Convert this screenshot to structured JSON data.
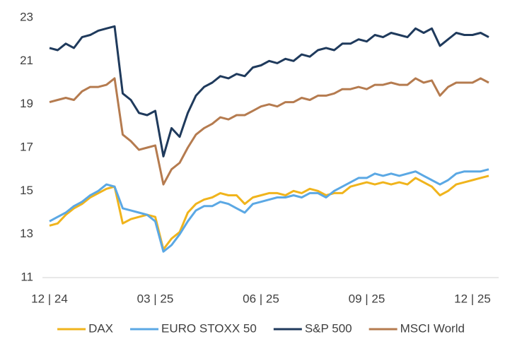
{
  "chart_data": {
    "type": "line",
    "categories": [
      "12 | 24",
      null,
      null,
      null,
      null,
      null,
      null,
      null,
      null,
      null,
      null,
      null,
      null,
      "03 | 25",
      null,
      null,
      null,
      null,
      null,
      null,
      null,
      null,
      null,
      null,
      null,
      null,
      "06 | 25",
      null,
      null,
      null,
      null,
      null,
      null,
      null,
      null,
      null,
      null,
      null,
      null,
      "09 | 25",
      null,
      null,
      null,
      null,
      null,
      null,
      null,
      null,
      null,
      null,
      null,
      null,
      "12 | 25",
      null,
      null
    ],
    "ylim": [
      11,
      23
    ],
    "yticks": [
      11,
      13,
      15,
      17,
      19,
      21,
      23
    ],
    "grid": false,
    "legend": "bottom",
    "series": [
      {
        "name": "DAX",
        "color": "#f0b41c",
        "values": [
          13.4,
          13.5,
          13.9,
          14.2,
          14.4,
          14.7,
          14.9,
          15.1,
          15.2,
          13.5,
          13.7,
          13.8,
          13.9,
          13.8,
          12.3,
          12.8,
          13.1,
          14.0,
          14.4,
          14.6,
          14.7,
          14.9,
          14.8,
          14.8,
          14.4,
          14.7,
          14.8,
          14.9,
          14.9,
          14.8,
          15.0,
          14.9,
          15.1,
          15.0,
          14.8,
          14.9,
          14.9,
          15.2,
          15.3,
          15.4,
          15.3,
          15.4,
          15.3,
          15.4,
          15.3,
          15.6,
          15.4,
          15.2,
          14.8,
          15.0,
          15.3,
          15.4,
          15.5,
          15.6,
          15.7
        ]
      },
      {
        "name": "EURO STOXX 50",
        "color": "#5ba8e4",
        "values": [
          13.6,
          13.8,
          14.0,
          14.3,
          14.5,
          14.8,
          15.0,
          15.3,
          15.2,
          14.2,
          14.1,
          14.0,
          13.9,
          13.6,
          12.2,
          12.5,
          13.0,
          13.6,
          14.1,
          14.3,
          14.3,
          14.5,
          14.4,
          14.2,
          14.0,
          14.4,
          14.5,
          14.6,
          14.7,
          14.7,
          14.8,
          14.7,
          14.9,
          14.9,
          14.7,
          15.0,
          15.2,
          15.4,
          15.6,
          15.6,
          15.8,
          15.7,
          15.8,
          15.7,
          15.8,
          15.9,
          15.7,
          15.5,
          15.3,
          15.5,
          15.8,
          15.9,
          15.9,
          15.9,
          16.0
        ]
      },
      {
        "name": "S&P 500",
        "color": "#1f3a5c",
        "values": [
          21.6,
          21.5,
          21.8,
          21.6,
          22.1,
          22.2,
          22.4,
          22.5,
          22.6,
          19.5,
          19.2,
          18.6,
          18.5,
          18.7,
          16.6,
          17.9,
          17.5,
          18.6,
          19.4,
          19.8,
          20.0,
          20.3,
          20.2,
          20.4,
          20.3,
          20.7,
          20.8,
          21.0,
          20.9,
          21.1,
          21.0,
          21.3,
          21.2,
          21.5,
          21.6,
          21.5,
          21.8,
          21.8,
          22.0,
          21.9,
          22.2,
          22.1,
          22.3,
          22.2,
          22.1,
          22.5,
          22.3,
          22.5,
          21.7,
          22.0,
          22.3,
          22.2,
          22.2,
          22.3,
          22.1
        ]
      },
      {
        "name": "MSCI World",
        "color": "#b57b4f",
        "values": [
          19.1,
          19.2,
          19.3,
          19.2,
          19.6,
          19.8,
          19.8,
          19.9,
          20.2,
          17.6,
          17.3,
          16.9,
          17.0,
          17.1,
          15.3,
          16.0,
          16.3,
          17.0,
          17.6,
          17.9,
          18.1,
          18.4,
          18.3,
          18.5,
          18.5,
          18.7,
          18.9,
          19.0,
          18.9,
          19.1,
          19.1,
          19.3,
          19.2,
          19.4,
          19.4,
          19.5,
          19.7,
          19.7,
          19.8,
          19.7,
          19.9,
          19.9,
          20.0,
          19.9,
          19.9,
          20.2,
          20.0,
          20.1,
          19.4,
          19.8,
          20.0,
          20.0,
          20.0,
          20.2,
          20.0
        ]
      }
    ]
  }
}
